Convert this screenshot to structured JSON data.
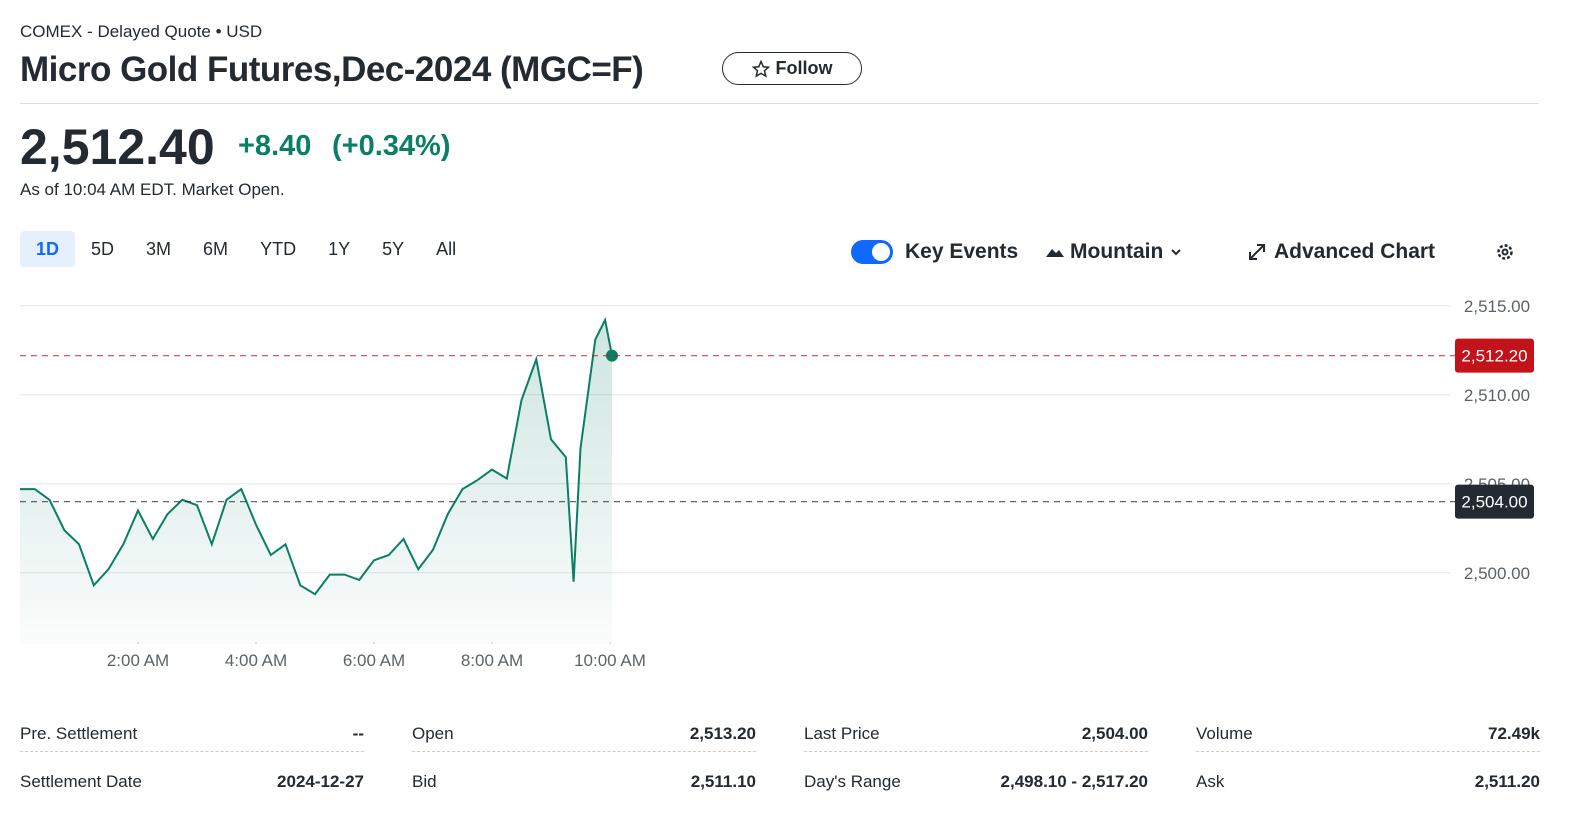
{
  "header": {
    "source": "COMEX - Delayed Quote • USD",
    "title": "Micro Gold Futures,Dec-2024 (MGC=F)",
    "follow": "Follow",
    "price": "2,512.40",
    "change": "+8.40",
    "change_pct": "(+0.34%)",
    "as_of": "As of 10:04 AM EDT. Market Open."
  },
  "ranges": [
    "1D",
    "5D",
    "3M",
    "6M",
    "YTD",
    "1Y",
    "5Y",
    "All"
  ],
  "controls": {
    "key_events": "Key Events",
    "chart_type": "Mountain",
    "advanced": "Advanced Chart"
  },
  "chart_data": {
    "type": "line",
    "series": [
      {
        "color": "#0a7f64",
        "x": [
          0,
          15,
          30,
          45,
          60,
          75,
          90,
          105,
          120,
          135,
          150,
          165,
          180,
          195,
          210,
          225,
          240,
          255,
          270,
          285,
          300,
          315,
          330,
          345,
          360,
          375,
          390,
          405,
          420,
          435,
          450,
          465,
          480,
          495,
          510,
          525,
          540,
          555,
          563,
          570,
          585,
          595,
          602
        ],
        "values": [
          2504.7,
          2504.7,
          2504.1,
          2502.4,
          2501.6,
          2499.3,
          2500.2,
          2501.6,
          2503.5,
          2501.9,
          2503.3,
          2504.1,
          2503.8,
          2501.6,
          2504.1,
          2504.7,
          2502.7,
          2501.0,
          2501.6,
          2499.3,
          2498.8,
          2499.9,
          2499.9,
          2499.6,
          2500.7,
          2501.0,
          2501.9,
          2500.2,
          2501.3,
          2503.3,
          2504.7,
          2505.2,
          2505.8,
          2505.3,
          2509.7,
          2512.0,
          2507.5,
          2506.5,
          2499.5,
          2507.0,
          2513.1,
          2514.2,
          2512.2
        ]
      }
    ],
    "xlim": [
      0,
      1440
    ],
    "xticks": [
      {
        "value": 120,
        "label": "2:00 AM"
      },
      {
        "value": 240,
        "label": "4:00 AM"
      },
      {
        "value": 360,
        "label": "6:00 AM"
      },
      {
        "value": 480,
        "label": "8:00 AM"
      },
      {
        "value": 600,
        "label": "10:00 AM"
      }
    ],
    "ylim": [
      2496,
      2516
    ],
    "yticks": [
      {
        "value": 2500,
        "label": "2,500.00"
      },
      {
        "value": 2505,
        "label": "2,505.00"
      },
      {
        "value": 2510,
        "label": "2,510.00"
      },
      {
        "value": 2515,
        "label": "2,515.00"
      }
    ],
    "grid": true,
    "reference_lines": [
      {
        "value": 2512.2,
        "label": "2,512.20",
        "color": "#c4121a"
      },
      {
        "value": 2504.0,
        "label": "2,504.00",
        "color": "#232a31"
      }
    ]
  },
  "stats": [
    [
      {
        "label": "Pre. Settlement",
        "value": "--"
      },
      {
        "label": "Settlement Date",
        "value": "2024-12-27"
      }
    ],
    [
      {
        "label": "Open",
        "value": "2,513.20"
      },
      {
        "label": "Bid",
        "value": "2,511.10"
      }
    ],
    [
      {
        "label": "Last Price",
        "value": "2,504.00"
      },
      {
        "label": "Day's Range",
        "value": "2,498.10 - 2,517.20"
      }
    ],
    [
      {
        "label": "Volume",
        "value": "72.49k"
      },
      {
        "label": "Ask",
        "value": "2,511.20"
      }
    ]
  ]
}
